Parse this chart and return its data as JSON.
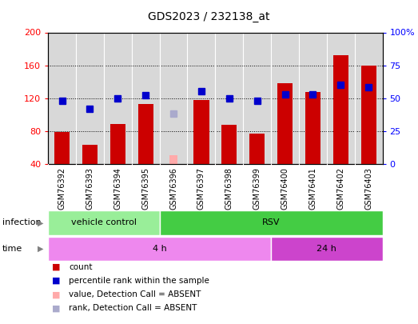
{
  "title": "GDS2023 / 232138_at",
  "samples": [
    "GSM76392",
    "GSM76393",
    "GSM76394",
    "GSM76395",
    "GSM76396",
    "GSM76397",
    "GSM76398",
    "GSM76399",
    "GSM76400",
    "GSM76401",
    "GSM76402",
    "GSM76403"
  ],
  "bar_values": [
    79,
    63,
    88,
    113,
    null,
    118,
    87,
    77,
    138,
    127,
    172,
    160
  ],
  "bar_absent_value": 50,
  "bar_absent_index": 4,
  "rank_values": [
    48,
    42,
    50,
    52,
    null,
    55,
    50,
    48,
    53,
    53,
    60,
    58
  ],
  "rank_absent_value": 38,
  "rank_absent_index": 4,
  "bar_color": "#cc0000",
  "rank_color": "#0000cc",
  "bar_absent_color": "#ffaaaa",
  "rank_absent_color": "#aaaacc",
  "ylim_left": [
    40,
    200
  ],
  "ylim_right": [
    0,
    100
  ],
  "yticks_left": [
    40,
    80,
    120,
    160,
    200
  ],
  "yticks_right": [
    0,
    25,
    50,
    75,
    100
  ],
  "infection_groups": [
    {
      "label": "vehicle control",
      "start": 0,
      "end": 4,
      "color": "#99ee99"
    },
    {
      "label": "RSV",
      "start": 4,
      "end": 12,
      "color": "#44cc44"
    }
  ],
  "time_groups": [
    {
      "label": "4 h",
      "start": 0,
      "end": 8,
      "color": "#ee88ee"
    },
    {
      "label": "24 h",
      "start": 8,
      "end": 12,
      "color": "#cc44cc"
    }
  ],
  "legend_items": [
    {
      "label": "count",
      "color": "#cc0000"
    },
    {
      "label": "percentile rank within the sample",
      "color": "#0000cc"
    },
    {
      "label": "value, Detection Call = ABSENT",
      "color": "#ffaaaa"
    },
    {
      "label": "rank, Detection Call = ABSENT",
      "color": "#aaaacc"
    }
  ],
  "bar_width": 0.55,
  "marker_size": 6,
  "background_color": "#ffffff",
  "plot_bg_color": "#d8d8d8",
  "infection_label": "infection",
  "time_label": "time",
  "label_row_color": "#c8c8c8"
}
